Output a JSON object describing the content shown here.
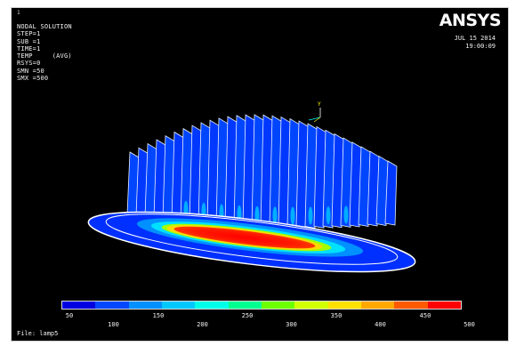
{
  "window_number": "1",
  "result_title": "NODAL SOLUTION",
  "info_lines": [
    "STEP=1",
    "SUB =1",
    "TIME=1",
    "TEMP     (AVG)",
    "RSYS=0",
    "SMN =50",
    "SMX =500"
  ],
  "logo_text": "ANSYS",
  "date_stamp": "JUL 15 2014",
  "time_stamp": "19:00:09",
  "axis_triad_label": "Y",
  "file_label": "File: lamp5",
  "legend": {
    "colors": [
      "#0000e0",
      "#0047ff",
      "#0090ff",
      "#00c8ff",
      "#00ffe8",
      "#00ff90",
      "#6cff00",
      "#d2ff00",
      "#ffe100",
      "#ffa800",
      "#ff5a00",
      "#ff0000"
    ],
    "labels_lower": [
      "50",
      "150",
      "250",
      "350",
      "450"
    ],
    "labels_upper": [
      "100",
      "200",
      "300",
      "400",
      "500"
    ]
  }
}
